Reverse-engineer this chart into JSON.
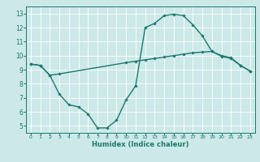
{
  "xlabel": "Humidex (Indice chaleur)",
  "background_color": "#cce8e8",
  "grid_color": "#ffffff",
  "line_color": "#1a7a6e",
  "xlim": [
    -0.5,
    23.5
  ],
  "ylim": [
    4.5,
    13.5
  ],
  "yticks": [
    5,
    6,
    7,
    8,
    9,
    10,
    11,
    12,
    13
  ],
  "xticks": [
    0,
    1,
    2,
    3,
    4,
    5,
    6,
    7,
    8,
    9,
    10,
    11,
    12,
    13,
    14,
    15,
    16,
    17,
    18,
    19,
    20,
    21,
    22,
    23
  ],
  "series1": {
    "x": [
      0,
      1,
      2,
      3,
      10,
      11,
      12,
      13,
      14,
      15,
      16,
      17,
      18,
      19,
      20,
      21,
      22,
      23
    ],
    "y": [
      9.4,
      9.3,
      8.6,
      8.7,
      9.5,
      9.6,
      9.7,
      9.8,
      9.9,
      10.0,
      10.1,
      10.2,
      10.25,
      10.3,
      10.0,
      9.85,
      9.3,
      8.9
    ]
  },
  "series2": {
    "x": [
      0,
      1,
      2,
      3,
      4,
      5,
      6,
      7,
      8,
      9,
      10,
      11,
      12,
      13,
      14,
      15,
      16,
      17,
      18,
      19,
      20,
      21,
      22,
      23
    ],
    "y": [
      9.4,
      9.3,
      8.6,
      7.25,
      6.5,
      6.35,
      5.85,
      4.85,
      4.85,
      5.4,
      6.85,
      7.85,
      12.0,
      12.3,
      12.85,
      12.95,
      12.85,
      12.2,
      11.4,
      10.3,
      9.95,
      9.8,
      9.3,
      8.9
    ]
  },
  "marker": "D",
  "markersize": 1.8,
  "linewidth": 1.0
}
